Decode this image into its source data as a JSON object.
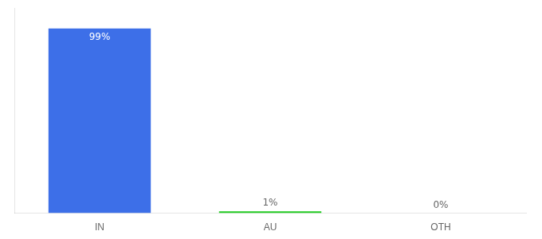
{
  "chart_data": {
    "type": "bar",
    "categories": [
      "IN",
      "AU",
      "OTH"
    ],
    "values": [
      99,
      1,
      0
    ],
    "value_labels": [
      "99%",
      "1%",
      "0%"
    ],
    "data_labels": true,
    "colors": [
      "#3d6fe8",
      "#22cc22",
      "#3d6fe8"
    ],
    "ylim": [
      0,
      110
    ],
    "grid": false,
    "tick_labels": "x"
  }
}
